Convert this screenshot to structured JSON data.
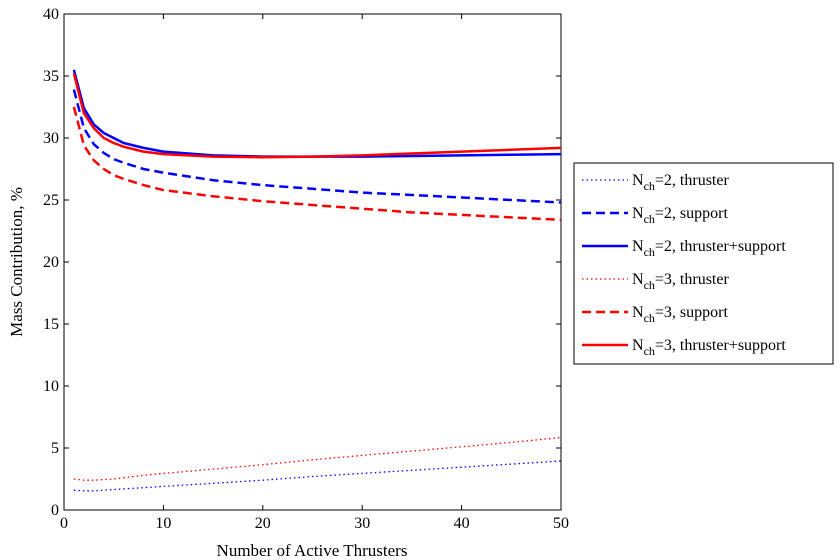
{
  "chart_data": {
    "type": "line",
    "xlabel": "Number of Active Thrusters",
    "ylabel": "Mass Contribution, %",
    "xlim": [
      0,
      50
    ],
    "ylim": [
      0,
      40
    ],
    "xticks": [
      "0",
      "10",
      "20",
      "30",
      "40",
      "50"
    ],
    "yticks": [
      "0",
      "5",
      "10",
      "15",
      "20",
      "25",
      "30",
      "35",
      "40"
    ],
    "grid": false,
    "legend_placement": "outside-right",
    "x": [
      1,
      2,
      3,
      4,
      5,
      6,
      8,
      10,
      15,
      20,
      25,
      30,
      35,
      40,
      45,
      50
    ],
    "series": [
      {
        "name": "N_ch=2, thruster",
        "legend_main": "N",
        "legend_sub": "ch",
        "legend_rest": "=2, thruster",
        "color": "#0000ff",
        "style": "dotted",
        "values": [
          1.6,
          1.55,
          1.55,
          1.6,
          1.65,
          1.7,
          1.8,
          1.9,
          2.15,
          2.4,
          2.7,
          2.95,
          3.2,
          3.45,
          3.7,
          3.95
        ]
      },
      {
        "name": "N_ch=2, support",
        "legend_main": "N",
        "legend_sub": "ch",
        "legend_rest": "=2, support",
        "color": "#0000ff",
        "style": "dashed",
        "values": [
          33.9,
          30.8,
          29.5,
          28.8,
          28.3,
          28.0,
          27.5,
          27.2,
          26.6,
          26.2,
          25.9,
          25.6,
          25.4,
          25.2,
          25.0,
          24.8
        ]
      },
      {
        "name": "N_ch=2, thruster+support",
        "legend_main": "N",
        "legend_sub": "ch",
        "legend_rest": "=2, thruster+support",
        "color": "#0000ff",
        "style": "solid",
        "values": [
          35.5,
          32.4,
          31.1,
          30.4,
          30.0,
          29.6,
          29.2,
          28.9,
          28.6,
          28.5,
          28.5,
          28.5,
          28.55,
          28.6,
          28.65,
          28.7
        ]
      },
      {
        "name": "N_ch=3, thruster",
        "legend_main": "N",
        "legend_sub": "ch",
        "legend_rest": "=3, thruster",
        "color": "#ff0000",
        "style": "dotted",
        "values": [
          2.5,
          2.4,
          2.4,
          2.45,
          2.5,
          2.6,
          2.8,
          2.95,
          3.3,
          3.65,
          4.05,
          4.4,
          4.75,
          5.1,
          5.45,
          5.85
        ]
      },
      {
        "name": "N_ch=3, support",
        "legend_main": "N",
        "legend_sub": "ch",
        "legend_rest": "=3, support",
        "color": "#ff0000",
        "style": "dashed",
        "values": [
          32.5,
          29.4,
          28.2,
          27.5,
          27.0,
          26.7,
          26.2,
          25.8,
          25.3,
          24.9,
          24.6,
          24.3,
          24.0,
          23.8,
          23.6,
          23.4
        ]
      },
      {
        "name": "N_ch=3, thruster+support",
        "legend_main": "N",
        "legend_sub": "ch",
        "legend_rest": "=3, thruster+support",
        "color": "#ff0000",
        "style": "solid",
        "values": [
          35.2,
          32.0,
          30.8,
          30.0,
          29.6,
          29.3,
          28.9,
          28.7,
          28.5,
          28.45,
          28.5,
          28.6,
          28.75,
          28.9,
          29.05,
          29.2
        ]
      }
    ]
  }
}
